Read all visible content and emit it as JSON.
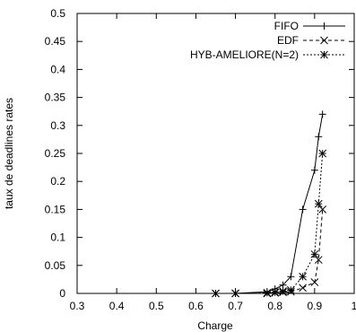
{
  "chart_data": {
    "type": "line",
    "xlabel": "Charge",
    "ylabel": "taux de deadlines rates",
    "xlim": [
      0.3,
      1.0
    ],
    "ylim": [
      0,
      0.5
    ],
    "xticks": [
      "0.3",
      "0.4",
      "0.5",
      "0.6",
      "0.7",
      "0.8",
      "0.9",
      "1"
    ],
    "yticks": [
      "0",
      "0.05",
      "0.1",
      "0.15",
      "0.2",
      "0.25",
      "0.3",
      "0.35",
      "0.4",
      "0.45",
      "0.5"
    ],
    "grid": false,
    "legend_position": "top-right",
    "series": [
      {
        "name": "FIFO",
        "marker": "plus",
        "line_style": "solid",
        "x": [
          0.65,
          0.7,
          0.78,
          0.8,
          0.82,
          0.84,
          0.87,
          0.9,
          0.91,
          0.92
        ],
        "y": [
          0.0,
          0.0,
          0.003,
          0.008,
          0.015,
          0.03,
          0.15,
          0.22,
          0.28,
          0.32
        ]
      },
      {
        "name": "EDF",
        "marker": "x",
        "line_style": "dashed",
        "x": [
          0.65,
          0.7,
          0.78,
          0.8,
          0.82,
          0.84,
          0.87,
          0.9,
          0.91,
          0.92
        ],
        "y": [
          0.0,
          0.0,
          0.0,
          0.001,
          0.002,
          0.003,
          0.01,
          0.02,
          0.06,
          0.15
        ]
      },
      {
        "name": "HYB-AMELIORE(N=2)",
        "marker": "star",
        "line_style": "dotted",
        "x": [
          0.65,
          0.7,
          0.78,
          0.8,
          0.82,
          0.84,
          0.87,
          0.9,
          0.91,
          0.92
        ],
        "y": [
          0.0,
          0.0,
          0.001,
          0.002,
          0.004,
          0.006,
          0.03,
          0.07,
          0.16,
          0.25
        ]
      }
    ]
  }
}
